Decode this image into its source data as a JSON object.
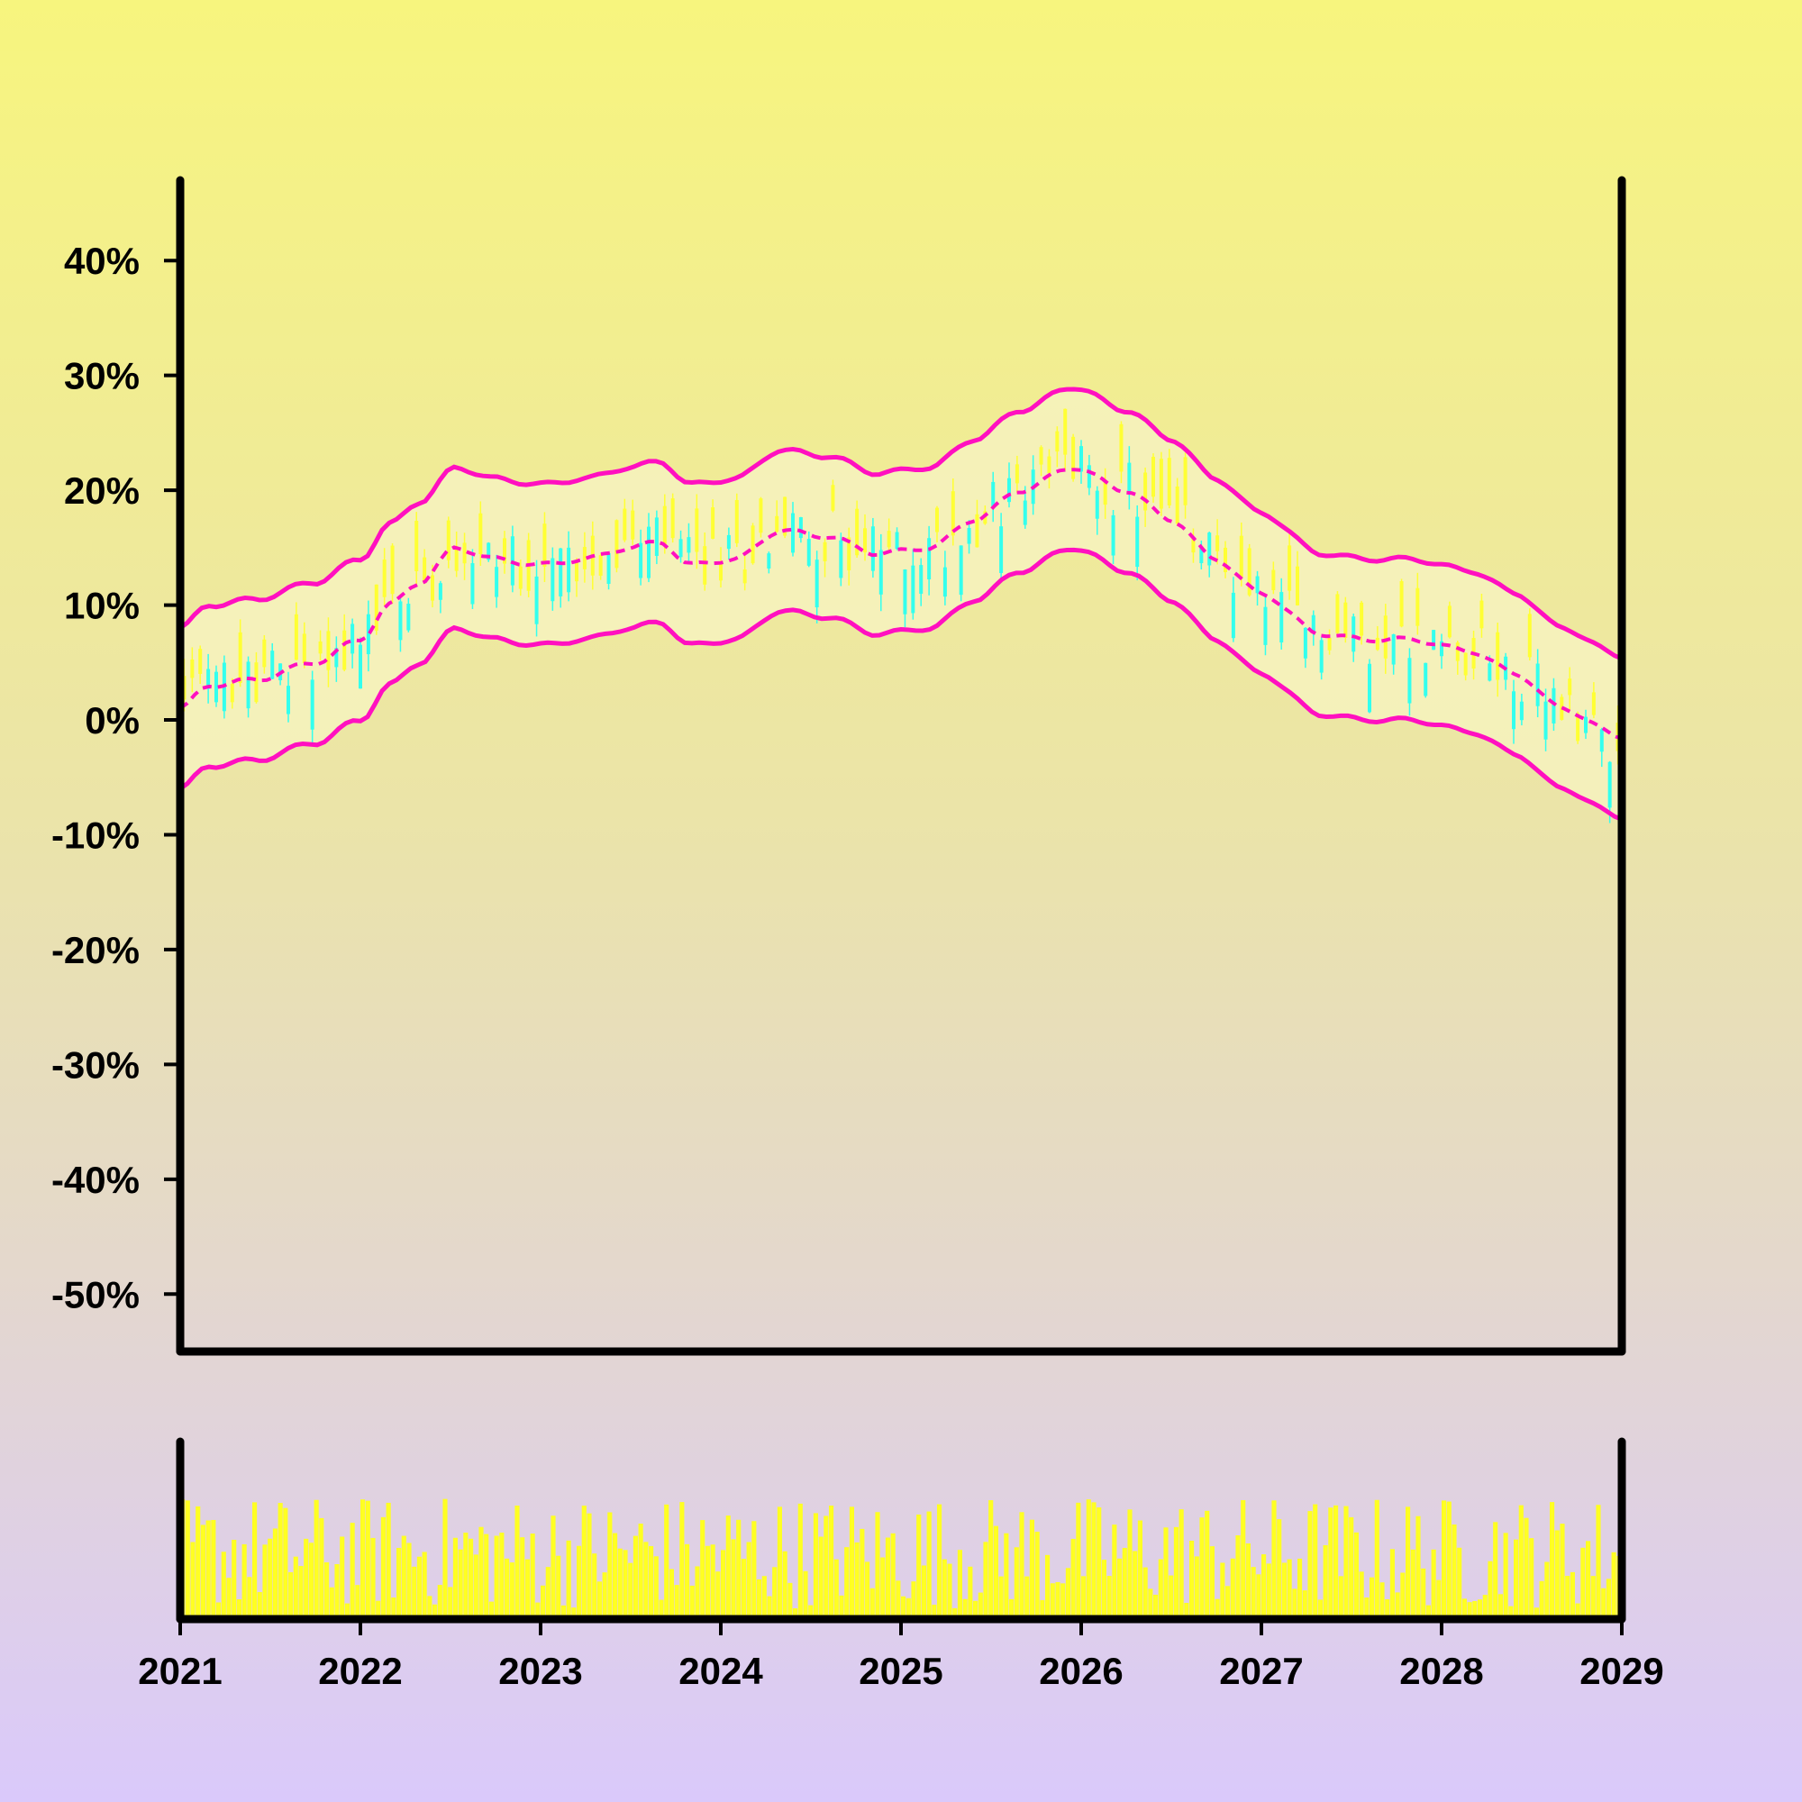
{
  "chart_data": [
    {
      "type": "candlestick",
      "ylim": [
        -0.55,
        0.47
      ],
      "xlim": [
        "2021-01-01",
        "2029-01-01"
      ],
      "y_ticks": [
        {
          "value": 0.4,
          "label": "40%"
        },
        {
          "value": 0.3,
          "label": "30%"
        },
        {
          "value": 0.2,
          "label": "20%"
        },
        {
          "value": 0.1,
          "label": "10%"
        },
        {
          "value": 0.0,
          "label": "0%"
        },
        {
          "value": -0.1,
          "label": "-10%"
        },
        {
          "value": -0.2,
          "label": "-20%"
        },
        {
          "value": -0.3,
          "label": "-30%"
        },
        {
          "value": -0.4,
          "label": "-40%"
        },
        {
          "value": -0.5,
          "label": "-50%"
        }
      ],
      "x_ticks": [
        "2021",
        "2022",
        "2023",
        "2024",
        "2025",
        "2026",
        "2027",
        "2028",
        "2029"
      ],
      "grid": false,
      "up_color": "#ffff33",
      "down_color": "#33ffee",
      "band_color": "#ff10c0",
      "band_fill": "#f6f2be",
      "key_points": [
        {
          "x": "2021-01-01",
          "y": 0.01
        },
        {
          "x": "2021-03-01",
          "y": 0.03
        },
        {
          "x": "2021-06-01",
          "y": 0.035
        },
        {
          "x": "2021-10-01",
          "y": 0.05
        },
        {
          "x": "2022-01-01",
          "y": 0.07
        },
        {
          "x": "2022-03-01",
          "y": 0.1
        },
        {
          "x": "2022-05-01",
          "y": 0.12
        },
        {
          "x": "2022-07-15",
          "y": 0.15
        },
        {
          "x": "2022-10-01",
          "y": 0.14
        },
        {
          "x": "2023-01-01",
          "y": 0.135
        },
        {
          "x": "2023-04-01",
          "y": 0.14
        },
        {
          "x": "2023-07-01",
          "y": 0.15
        },
        {
          "x": "2023-09-01",
          "y": 0.155
        },
        {
          "x": "2023-11-01",
          "y": 0.135
        },
        {
          "x": "2024-02-01",
          "y": 0.14
        },
        {
          "x": "2024-05-01",
          "y": 0.165
        },
        {
          "x": "2024-08-01",
          "y": 0.16
        },
        {
          "x": "2024-11-15",
          "y": 0.145
        },
        {
          "x": "2025-03-01",
          "y": 0.15
        },
        {
          "x": "2025-06-01",
          "y": 0.175
        },
        {
          "x": "2025-09-01",
          "y": 0.2
        },
        {
          "x": "2025-12-15",
          "y": 0.22
        },
        {
          "x": "2026-04-01",
          "y": 0.2
        },
        {
          "x": "2026-07-01",
          "y": 0.175
        },
        {
          "x": "2026-10-01",
          "y": 0.14
        },
        {
          "x": "2027-01-01",
          "y": 0.11
        },
        {
          "x": "2027-05-01",
          "y": 0.075
        },
        {
          "x": "2027-08-01",
          "y": 0.07
        },
        {
          "x": "2027-11-01",
          "y": 0.07
        },
        {
          "x": "2028-03-01",
          "y": 0.06
        },
        {
          "x": "2028-06-01",
          "y": 0.04
        },
        {
          "x": "2028-09-01",
          "y": 0.01
        },
        {
          "x": "2029-01-01",
          "y": -0.015
        }
      ],
      "band_halfwidth": 0.07
    },
    {
      "type": "bar",
      "x_ticks": [
        "2021",
        "2022",
        "2023",
        "2024",
        "2025",
        "2026",
        "2027",
        "2028",
        "2029"
      ],
      "ylim": [
        0,
        1
      ],
      "bar_color": "#ffff22",
      "bar_count": 280
    }
  ]
}
